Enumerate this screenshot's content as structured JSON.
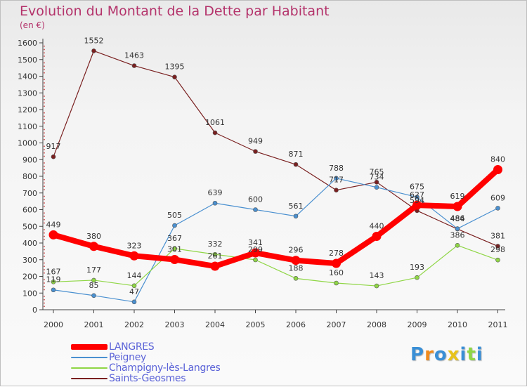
{
  "title": "Evolution du Montant de la Dette par Habitant",
  "unit": "(en €)",
  "logo": "Proxiti",
  "chart_data": {
    "type": "line",
    "title": "Evolution du Montant de la Dette par Habitant",
    "ylabel": "(en €)",
    "ylim": [
      0,
      1600
    ],
    "yticks": [
      0,
      100,
      200,
      300,
      400,
      500,
      600,
      700,
      800,
      900,
      1000,
      1100,
      1200,
      1300,
      1400,
      1500,
      1600
    ],
    "categories": [
      "2000",
      "2001",
      "2002",
      "2003",
      "2004",
      "2005",
      "2006",
      "2007",
      "2008",
      "2009",
      "2010",
      "2011"
    ],
    "grid": false,
    "legend": "bottom-left",
    "series": [
      {
        "name": "LANGRES",
        "color": "#ff0000",
        "values": [
          449,
          380,
          323,
          301,
          261,
          341,
          296,
          278,
          440,
          627,
          619,
          840
        ]
      },
      {
        "name": "Peigney",
        "color": "#4a90d0",
        "values": [
          119,
          85,
          47,
          505,
          639,
          600,
          561,
          788,
          734,
          675,
          486,
          609
        ]
      },
      {
        "name": "Champigny-lès-Langres",
        "color": "#8fd645",
        "values": [
          167,
          177,
          144,
          367,
          332,
          299,
          188,
          160,
          143,
          193,
          386,
          298
        ]
      },
      {
        "name": "Saints-Geosmes",
        "color": "#7a2020",
        "values": [
          917,
          1552,
          1463,
          1395,
          1061,
          949,
          871,
          717,
          765,
          594,
          484,
          381
        ]
      }
    ]
  }
}
